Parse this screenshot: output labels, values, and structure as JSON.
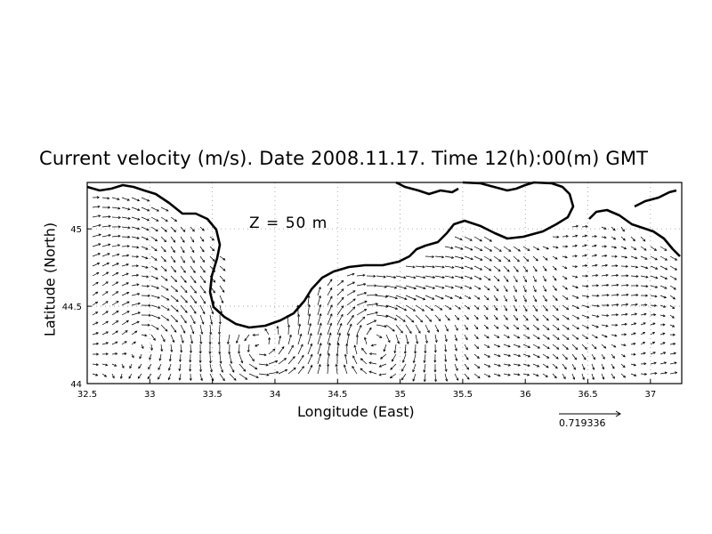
{
  "title": "Current velocity (m/s). Date 2008.11.17. Time 12(h):00(m) GMT",
  "depth_label": "Z = 50 m",
  "xlabel": "Longitude (East)",
  "ylabel": "Latitude (North)",
  "x_ticks": [
    "32.5",
    "33",
    "33.5",
    "34",
    "34.5",
    "35",
    "35.5",
    "36",
    "36.5",
    "37"
  ],
  "y_ticks": [
    "44",
    "44.5",
    "45"
  ],
  "reference_vector": {
    "value": "0.719336",
    "magnitude": 0.719336
  },
  "map": {
    "lon_range": [
      32.5,
      37.25
    ],
    "lat_range": [
      44.0,
      45.3
    ],
    "grid": "dotted",
    "coastline_color": "#000000",
    "vector_color": "#000000"
  }
}
